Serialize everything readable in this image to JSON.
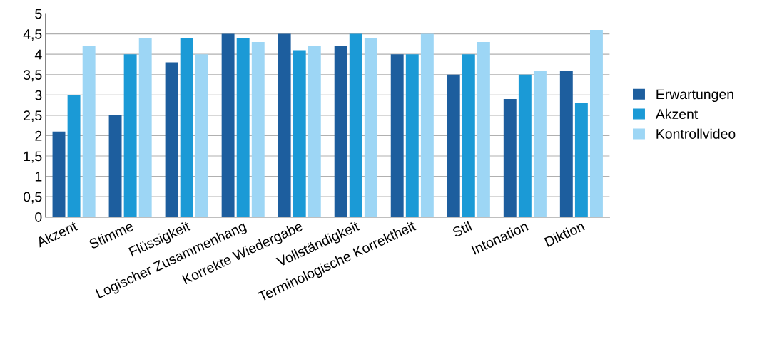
{
  "chart_data": {
    "type": "bar",
    "categories": [
      "Akzent",
      "Stimme",
      "Flüssigkeit",
      "Logischer Zusammenhang",
      "Korrekte Wiedergabe",
      "Vollständigkeit",
      "Terminologische Korrektheit",
      "Stil",
      "Intonation",
      "Diktion"
    ],
    "series": [
      {
        "name": "Erwartungen",
        "color": "#1d5e9e",
        "values": [
          2.1,
          2.5,
          3.8,
          4.5,
          4.5,
          4.2,
          4.0,
          3.5,
          2.9,
          3.6
        ]
      },
      {
        "name": "Akzent",
        "color": "#1b9ad6",
        "values": [
          3.0,
          4.0,
          4.4,
          4.4,
          4.1,
          4.5,
          4.0,
          4.0,
          3.5,
          2.8
        ]
      },
      {
        "name": "Kontrollvideo",
        "color": "#9dd6f5",
        "values": [
          4.2,
          4.4,
          4.0,
          4.3,
          4.2,
          4.4,
          4.5,
          4.3,
          3.6,
          4.6
        ]
      }
    ],
    "ylim": [
      0,
      5
    ],
    "yticks": [
      0,
      {
        "value": 0.5,
        "label": "0,5"
      },
      1,
      {
        "value": 1.5,
        "label": "1,5"
      },
      2,
      {
        "value": 2.5,
        "label": "2,5"
      },
      3,
      {
        "value": 3.5,
        "label": "3,5"
      },
      4,
      {
        "value": 4.5,
        "label": "4,5"
      },
      5
    ],
    "grid": "y",
    "legend": "right"
  }
}
